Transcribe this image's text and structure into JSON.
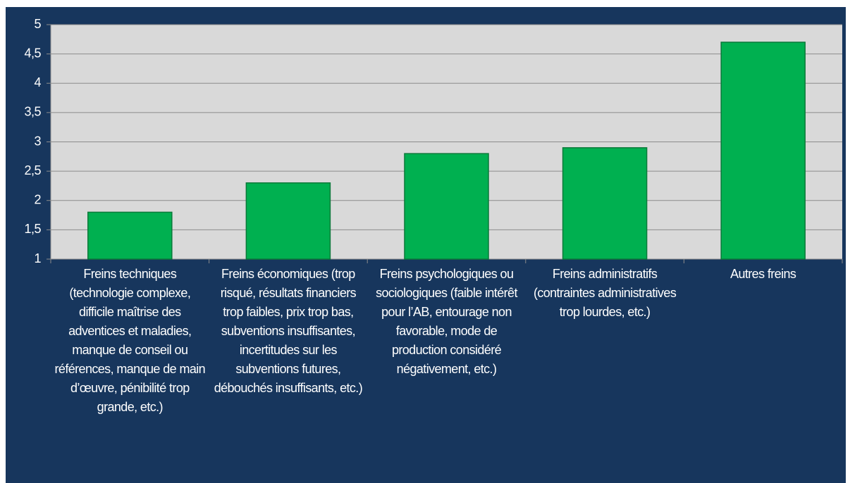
{
  "chart_data": {
    "type": "bar",
    "categories": [
      "Freins techniques (technologie complexe, difficile maîtrise des adventices et maladies, manque de conseil ou références, manque de main d’œuvre, pénibilité trop grande, etc.)",
      "Freins économiques (trop risqué, résultats financiers trop faibles, prix trop bas, subventions insuffisantes, incertitudes sur les subventions futures, débouchés insuffisants, etc.)",
      "Freins psychologiques ou sociologiques (faible intérêt pour l’AB, entourage non favorable, mode de production considéré négativement, etc.)",
      "Freins administratifs (contraintes administratives trop lourdes, etc.)",
      "Autres freins"
    ],
    "values": [
      1.8,
      2.3,
      2.8,
      2.9,
      4.7
    ],
    "color": "#00b050",
    "ylim": [
      1,
      5
    ],
    "yticks": [
      1,
      {
        "value": 1.5,
        "label": "1,5"
      },
      2,
      {
        "value": 2.5,
        "label": "2,5"
      },
      3,
      {
        "value": 3.5,
        "label": "3,5"
      },
      4,
      {
        "value": 4.5,
        "label": "4,5"
      },
      5
    ],
    "grid": true
  }
}
